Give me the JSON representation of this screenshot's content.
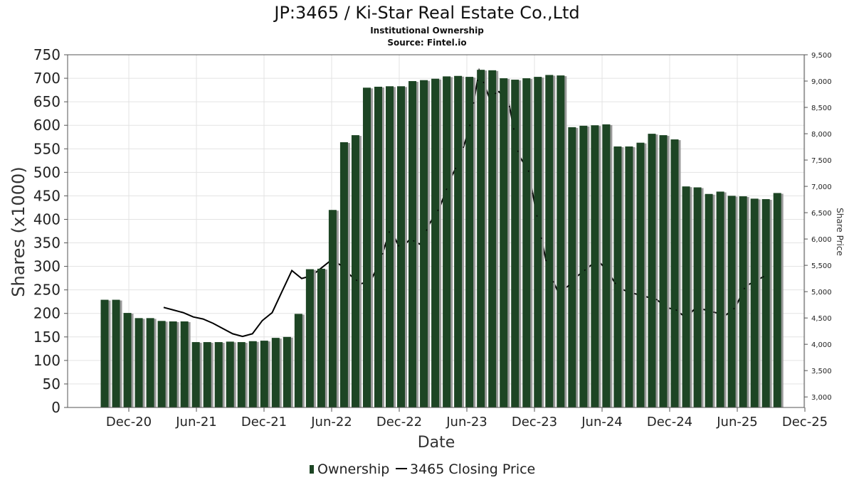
{
  "chart_data": {
    "type": "bar",
    "title": "JP:3465 / Ki-Star Real Estate Co.,Ltd",
    "subtitle": "Institutional Ownership",
    "source": "Source: Fintel.io",
    "xlabel": "Date",
    "ylabel": "Shares (x1000)",
    "y2label": "Share Price",
    "ylim": [
      0,
      750
    ],
    "y2lim": [
      2800,
      9500
    ],
    "yticks": [
      0,
      50,
      100,
      150,
      200,
      250,
      300,
      350,
      400,
      450,
      500,
      550,
      600,
      650,
      700,
      750
    ],
    "y2ticks": [
      "3,000",
      "3,500",
      "4,000",
      "4,500",
      "5,000",
      "5,500",
      "6,000",
      "6,500",
      "7,000",
      "7,500",
      "8,000",
      "8,500",
      "9,000",
      "9,500"
    ],
    "xticks": [
      "Dec-20",
      "Jun-21",
      "Dec-21",
      "Jun-22",
      "Dec-22",
      "Jun-23",
      "Dec-23",
      "Jun-24",
      "Dec-24",
      "Jun-25",
      "Dec-25"
    ],
    "grid": true,
    "legend_position": "bottom",
    "colors": {
      "bar": "#1d4524",
      "bar_shadow": "#9a9a9a",
      "line": "#000000"
    },
    "series": [
      {
        "name": "Ownership",
        "type": "bar",
        "axis": "left",
        "values": [
          229,
          229,
          201,
          190,
          190,
          184,
          183,
          183,
          139,
          139,
          139,
          140,
          139,
          141,
          142,
          148,
          150,
          199,
          294,
          295,
          420,
          564,
          579,
          680,
          682,
          683,
          683,
          694,
          696,
          699,
          704,
          705,
          703,
          718,
          717,
          700,
          697,
          700,
          703,
          707,
          706,
          596,
          599,
          600,
          602,
          555,
          555,
          563,
          582,
          579,
          570,
          470,
          468,
          454,
          459,
          450,
          449,
          444,
          443,
          456
        ]
      },
      {
        "name": "3465 Closing Price",
        "type": "line",
        "axis": "right",
        "values": [
          4700,
          4650,
          4600,
          4520,
          4480,
          4400,
          4300,
          4200,
          4150,
          4200,
          4450,
          4600,
          5000,
          5400,
          5250,
          5300,
          5450,
          5600,
          5500,
          5300,
          5150,
          5200,
          5600,
          6200,
          5800,
          6000,
          5900,
          6300,
          6600,
          7100,
          7500,
          8100,
          9200,
          8700,
          8800,
          8600,
          7600,
          7300,
          6300,
          5400,
          5000,
          5100,
          5300,
          5450,
          5600,
          5400,
          5100,
          5000,
          4950,
          4900,
          4850,
          4700,
          4650,
          4500,
          4700,
          4650,
          4600,
          4550,
          4700,
          5100,
          5200,
          5300
        ]
      }
    ]
  }
}
